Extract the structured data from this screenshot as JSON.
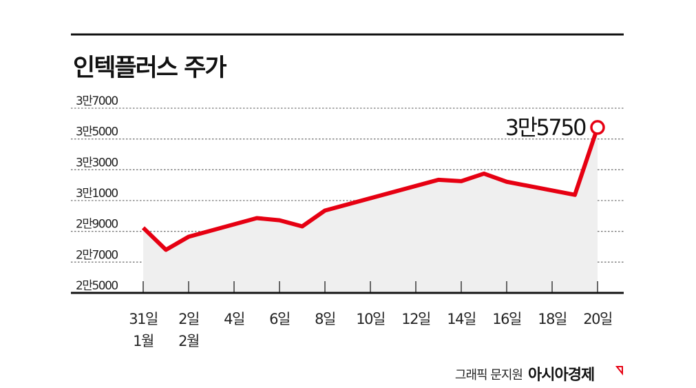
{
  "chart_data": {
    "type": "line",
    "title": "인텍플러스 주가",
    "xlabel": "",
    "ylabel": "",
    "ylim": [
      25000,
      37000
    ],
    "grid": true,
    "y_ticks": [
      {
        "value": 37000,
        "label": "3만7000"
      },
      {
        "value": 35000,
        "label": "3만5000"
      },
      {
        "value": 33000,
        "label": "3만3000"
      },
      {
        "value": 31000,
        "label": "3만1000"
      },
      {
        "value": 29000,
        "label": "2만9000"
      },
      {
        "value": 27000,
        "label": "2만7000"
      },
      {
        "value": 25000,
        "label": "2만5000"
      }
    ],
    "x_ticks": [
      {
        "day": 0,
        "label": "31일",
        "sub": "1월"
      },
      {
        "day": 2,
        "label": "2일",
        "sub": "2월"
      },
      {
        "day": 4,
        "label": "4일"
      },
      {
        "day": 6,
        "label": "6일"
      },
      {
        "day": 8,
        "label": "8일"
      },
      {
        "day": 10,
        "label": "10일"
      },
      {
        "day": 12,
        "label": "12일"
      },
      {
        "day": 14,
        "label": "14일"
      },
      {
        "day": 16,
        "label": "16일"
      },
      {
        "day": 18,
        "label": "18일"
      },
      {
        "day": 20,
        "label": "20일"
      }
    ],
    "series": [
      {
        "name": "인텍플러스",
        "color": "#e60012",
        "points": [
          {
            "day": 0,
            "value": 29230
          },
          {
            "day": 1,
            "value": 27800
          },
          {
            "day": 2,
            "value": 28650
          },
          {
            "day": 5,
            "value": 29860
          },
          {
            "day": 6,
            "value": 29720
          },
          {
            "day": 7,
            "value": 29320
          },
          {
            "day": 8,
            "value": 30350
          },
          {
            "day": 13,
            "value": 32350
          },
          {
            "day": 14,
            "value": 32260
          },
          {
            "day": 15,
            "value": 32750
          },
          {
            "day": 16,
            "value": 32220
          },
          {
            "day": 19,
            "value": 31370
          },
          {
            "day": 20,
            "value": 35750
          }
        ]
      }
    ],
    "annotation": {
      "label": "3만5750",
      "day": 20,
      "value": 35750
    }
  },
  "footer": {
    "credit": "그래픽 문지원",
    "logo": "아시아경제"
  }
}
